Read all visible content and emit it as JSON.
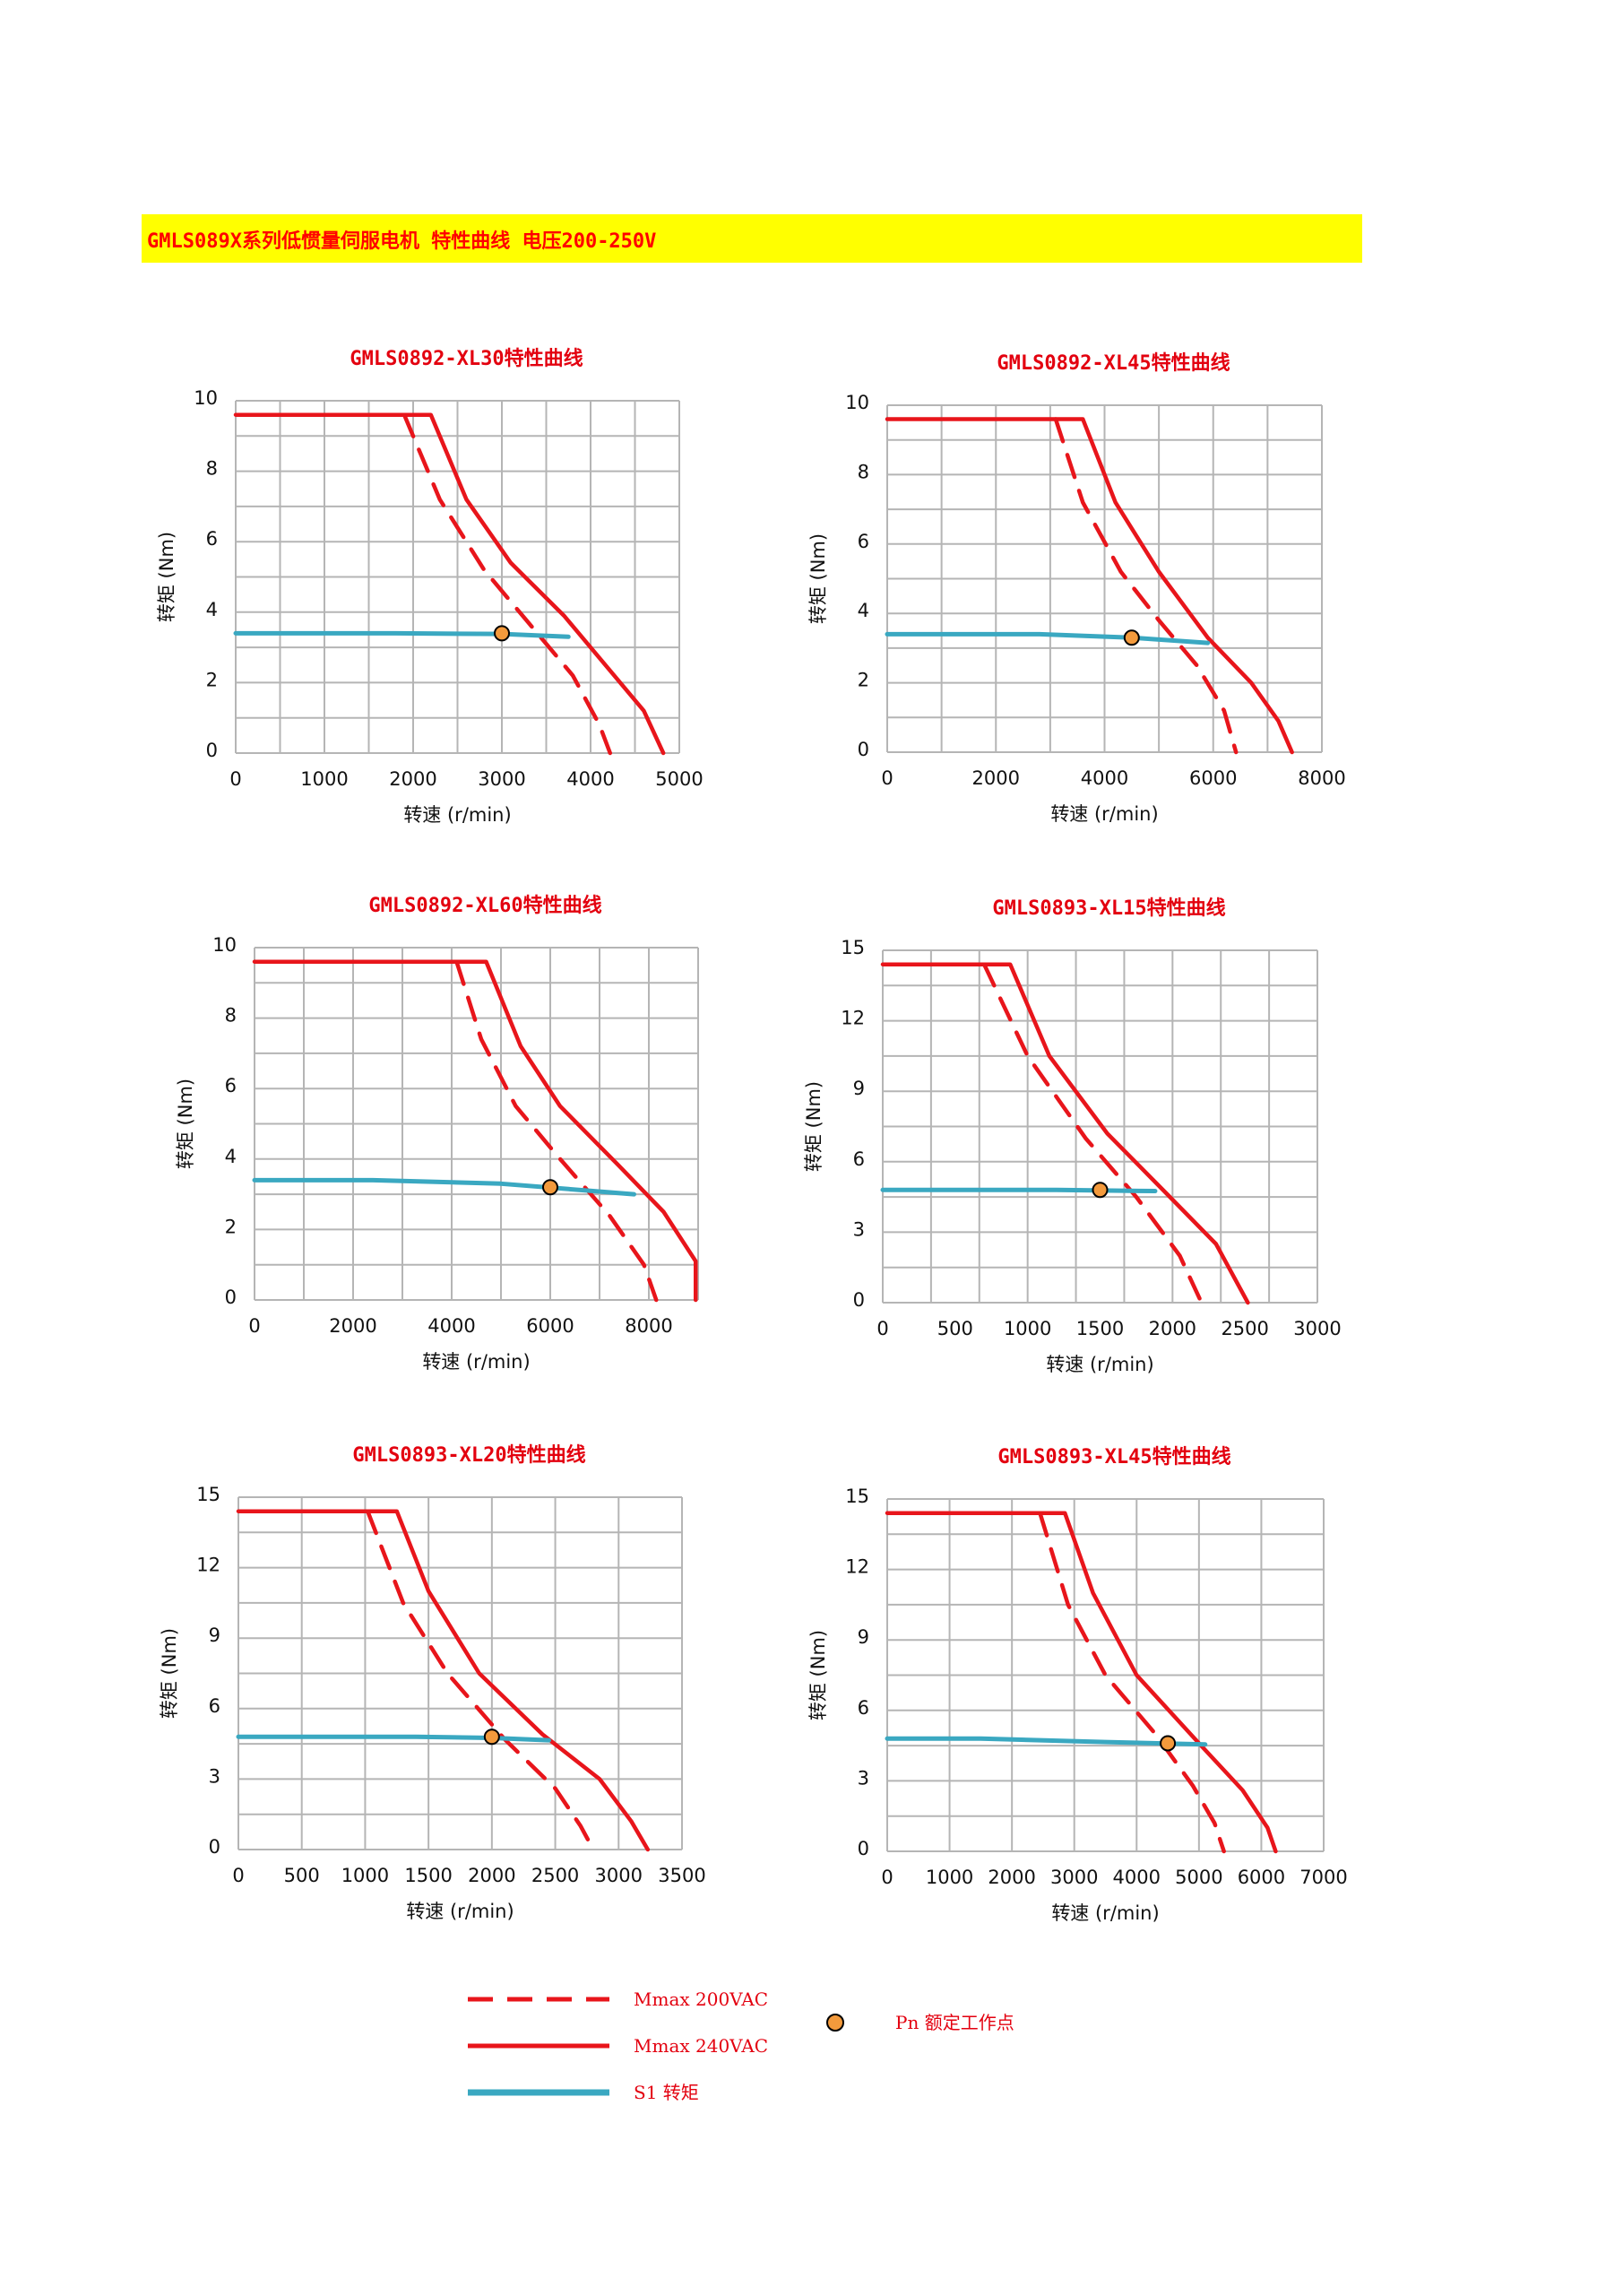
{
  "header": {
    "title": "GMLS089X系列低惯量伺服电机 特性曲线 电压200-250V"
  },
  "colors": {
    "red": "#e8151b",
    "teal": "#3aa8c1",
    "point_fill": "#f39a3c",
    "grid": "#b5b5b5",
    "title": "#e3000f"
  },
  "legend": {
    "dashed": "Mmax 200VAC",
    "solid": "Mmax 240VAC",
    "s1": "S1 转矩",
    "point": "Pn 额定工作点"
  },
  "chart_data": [
    {
      "type": "line",
      "title": "GMLS0892-XL30特性曲线",
      "xlabel": "转速 (r/min)",
      "ylabel": "转矩 (Nm)",
      "xlim": [
        0,
        5000
      ],
      "ylim": [
        0,
        10
      ],
      "xticks": [
        0,
        1000,
        2000,
        3000,
        4000,
        5000
      ],
      "yticks": [
        0,
        2,
        4,
        6,
        8,
        10
      ],
      "grid_x": 10,
      "grid_y": 10,
      "series": [
        {
          "role": "mmax_200vac",
          "style": "dashed",
          "points": [
            [
              1900,
              9.6
            ],
            [
              2300,
              7.2
            ],
            [
              2800,
              5.2
            ],
            [
              3300,
              3.7
            ],
            [
              3800,
              2.2
            ],
            [
              4100,
              0.8
            ],
            [
              4220,
              0
            ]
          ]
        },
        {
          "role": "mmax_240vac",
          "style": "solid",
          "points": [
            [
              0,
              9.6
            ],
            [
              2200,
              9.6
            ],
            [
              2600,
              7.2
            ],
            [
              3100,
              5.4
            ],
            [
              3700,
              3.9
            ],
            [
              4200,
              2.4
            ],
            [
              4600,
              1.2
            ],
            [
              4820,
              0
            ]
          ]
        },
        {
          "role": "s1",
          "style": "solid",
          "points": [
            [
              0,
              3.4
            ],
            [
              1800,
              3.4
            ],
            [
              3000,
              3.38
            ],
            [
              3750,
              3.3
            ]
          ]
        }
      ],
      "rated_point": [
        3000,
        3.4
      ]
    },
    {
      "type": "line",
      "title": "GMLS0892-XL45特性曲线",
      "xlabel": "转速 (r/min)",
      "ylabel": "转矩 (Nm)",
      "xlim": [
        0,
        8000
      ],
      "ylim": [
        0,
        10
      ],
      "xticks": [
        0,
        2000,
        4000,
        6000,
        8000
      ],
      "yticks": [
        0,
        2,
        4,
        6,
        8,
        10
      ],
      "grid_x": 8,
      "grid_y": 10,
      "series": [
        {
          "role": "mmax_200vac",
          "style": "dashed",
          "points": [
            [
              3100,
              9.6
            ],
            [
              3600,
              7.2
            ],
            [
              4300,
              5.2
            ],
            [
              5000,
              3.8
            ],
            [
              5700,
              2.5
            ],
            [
              6200,
              1.2
            ],
            [
              6420,
              0
            ]
          ]
        },
        {
          "role": "mmax_240vac",
          "style": "solid",
          "points": [
            [
              0,
              9.6
            ],
            [
              3600,
              9.6
            ],
            [
              4200,
              7.2
            ],
            [
              5000,
              5.2
            ],
            [
              5900,
              3.3
            ],
            [
              6700,
              2.0
            ],
            [
              7200,
              0.9
            ],
            [
              7450,
              0
            ]
          ]
        },
        {
          "role": "s1",
          "style": "solid",
          "points": [
            [
              0,
              3.4
            ],
            [
              2800,
              3.4
            ],
            [
              4500,
              3.3
            ],
            [
              5900,
              3.15
            ]
          ]
        }
      ],
      "rated_point": [
        4500,
        3.3
      ]
    },
    {
      "type": "line",
      "title": "GMLS0892-XL60特性曲线",
      "xlabel": "转速 (r/min)",
      "ylabel": "转矩 (Nm)",
      "xlim": [
        0,
        9000
      ],
      "ylim": [
        0,
        10
      ],
      "xticks": [
        0,
        2000,
        4000,
        6000,
        8000
      ],
      "yticks": [
        0,
        2,
        4,
        6,
        8,
        10
      ],
      "grid_x": 9,
      "grid_y": 10,
      "series": [
        {
          "role": "mmax_200vac",
          "style": "dashed",
          "points": [
            [
              4100,
              9.6
            ],
            [
              4600,
              7.4
            ],
            [
              5300,
              5.5
            ],
            [
              6200,
              4.0
            ],
            [
              7200,
              2.4
            ],
            [
              7900,
              1.0
            ],
            [
              8150,
              0
            ]
          ]
        },
        {
          "role": "mmax_240vac",
          "style": "solid",
          "points": [
            [
              0,
              9.6
            ],
            [
              4700,
              9.6
            ],
            [
              5400,
              7.2
            ],
            [
              6200,
              5.5
            ],
            [
              7400,
              3.8
            ],
            [
              8300,
              2.5
            ],
            [
              8950,
              1.1
            ],
            [
              8950,
              0
            ]
          ]
        },
        {
          "role": "s1",
          "style": "solid",
          "points": [
            [
              0,
              3.4
            ],
            [
              2400,
              3.4
            ],
            [
              5000,
              3.3
            ],
            [
              7700,
              3.0
            ]
          ]
        }
      ],
      "rated_point": [
        6000,
        3.2
      ]
    },
    {
      "type": "line",
      "title": "GMLS0893-XL15特性曲线",
      "xlabel": "转速 (r/min)",
      "ylabel": "转矩 (Nm)",
      "xlim": [
        0,
        3000
      ],
      "ylim": [
        0,
        15
      ],
      "xticks": [
        0,
        500,
        1000,
        1500,
        2000,
        2500,
        3000
      ],
      "yticks": [
        0,
        3,
        6,
        9,
        12,
        15
      ],
      "grid_x": 9,
      "grid_y": 10,
      "series": [
        {
          "role": "mmax_200vac",
          "style": "dashed",
          "points": [
            [
              700,
              14.4
            ],
            [
              1000,
              10.5
            ],
            [
              1400,
              7.0
            ],
            [
              1750,
              4.5
            ],
            [
              2050,
              2.0
            ],
            [
              2200,
              0
            ]
          ]
        },
        {
          "role": "mmax_240vac",
          "style": "solid",
          "points": [
            [
              0,
              14.4
            ],
            [
              880,
              14.4
            ],
            [
              1150,
              10.5
            ],
            [
              1550,
              7.2
            ],
            [
              1950,
              4.7
            ],
            [
              2300,
              2.5
            ],
            [
              2520,
              0
            ]
          ]
        },
        {
          "role": "s1",
          "style": "solid",
          "points": [
            [
              0,
              4.8
            ],
            [
              1200,
              4.8
            ],
            [
              1880,
              4.75
            ]
          ]
        }
      ],
      "rated_point": [
        1500,
        4.8
      ]
    },
    {
      "type": "line",
      "title": "GMLS0893-XL20特性曲线",
      "xlabel": "转速 (r/min)",
      "ylabel": "转矩 (Nm)",
      "xlim": [
        0,
        3500
      ],
      "ylim": [
        0,
        15
      ],
      "xticks": [
        0,
        500,
        1000,
        1500,
        2000,
        2500,
        3000,
        3500
      ],
      "yticks": [
        0,
        3,
        6,
        9,
        12,
        15
      ],
      "grid_x": 7,
      "grid_y": 10,
      "series": [
        {
          "role": "mmax_200vac",
          "style": "dashed",
          "points": [
            [
              1020,
              14.4
            ],
            [
              1300,
              10.5
            ],
            [
              1650,
              7.5
            ],
            [
              2100,
              4.7
            ],
            [
              2500,
              2.6
            ],
            [
              2700,
              1.0
            ],
            [
              2800,
              0
            ]
          ]
        },
        {
          "role": "mmax_240vac",
          "style": "solid",
          "points": [
            [
              0,
              14.4
            ],
            [
              1250,
              14.4
            ],
            [
              1500,
              11.0
            ],
            [
              1900,
              7.5
            ],
            [
              2400,
              4.9
            ],
            [
              2850,
              3.0
            ],
            [
              3100,
              1.2
            ],
            [
              3230,
              0
            ]
          ]
        },
        {
          "role": "s1",
          "style": "solid",
          "points": [
            [
              0,
              4.8
            ],
            [
              1400,
              4.8
            ],
            [
              2000,
              4.75
            ],
            [
              2450,
              4.65
            ]
          ]
        }
      ],
      "rated_point": [
        2000,
        4.8
      ]
    },
    {
      "type": "line",
      "title": "GMLS0893-XL45特性曲线",
      "xlabel": "转速 (r/min)",
      "ylabel": "转矩 (Nm)",
      "xlim": [
        0,
        7000
      ],
      "ylim": [
        0,
        15
      ],
      "xticks": [
        0,
        1000,
        2000,
        3000,
        4000,
        5000,
        6000,
        7000
      ],
      "yticks": [
        0,
        3,
        6,
        9,
        12,
        15
      ],
      "grid_x": 7,
      "grid_y": 10,
      "series": [
        {
          "role": "mmax_200vac",
          "style": "dashed",
          "points": [
            [
              2450,
              14.4
            ],
            [
              2900,
              10.5
            ],
            [
              3500,
              7.5
            ],
            [
              4300,
              5.0
            ],
            [
              4900,
              2.8
            ],
            [
              5250,
              1.2
            ],
            [
              5400,
              0
            ]
          ]
        },
        {
          "role": "mmax_240vac",
          "style": "solid",
          "points": [
            [
              0,
              14.4
            ],
            [
              2850,
              14.4
            ],
            [
              3300,
              11.0
            ],
            [
              4000,
              7.5
            ],
            [
              5000,
              4.6
            ],
            [
              5700,
              2.6
            ],
            [
              6100,
              1.0
            ],
            [
              6230,
              0
            ]
          ]
        },
        {
          "role": "s1",
          "style": "solid",
          "points": [
            [
              0,
              4.8
            ],
            [
              1500,
              4.8
            ],
            [
              3500,
              4.65
            ],
            [
              5100,
              4.55
            ]
          ]
        }
      ],
      "rated_point": [
        4500,
        4.6
      ]
    }
  ]
}
